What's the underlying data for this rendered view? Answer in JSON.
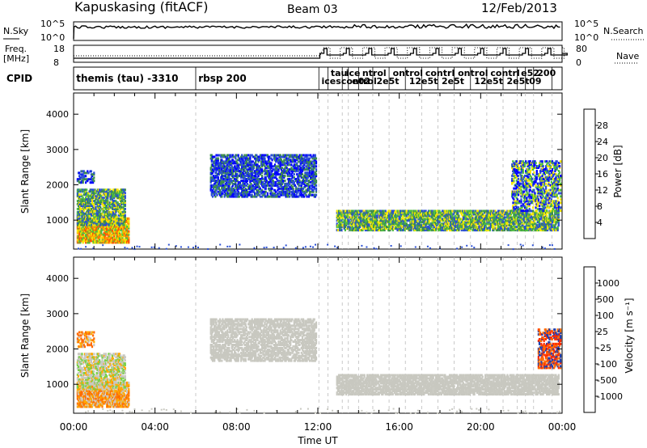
{
  "header": {
    "station": "Kapuskasing (fitACF)",
    "beam": "Beam 03",
    "date": "12/Feb/2013"
  },
  "strips": {
    "nsky_label": "N.Sky",
    "nsky_ticks": [
      "10^5",
      "10^0"
    ],
    "nsearch_label": "N.Search",
    "nsearch_ticks": [
      "10^5",
      "10^0"
    ],
    "freq_label": [
      "Freq.",
      "[MHz]"
    ],
    "freq_ticks": [
      "18",
      "8"
    ],
    "nave_label": "Nave",
    "nave_ticks": [
      "80",
      "0"
    ],
    "cpid_label": "CPID",
    "cpid_names": [
      {
        "text": "themis (tau) -3310",
        "t": 0.05
      },
      {
        "text": "rbsp 200",
        "t": 6.05
      },
      {
        "text": "tau",
        "t": 12.55
      },
      {
        "text": "icescontrol",
        "t": 12.1
      },
      {
        "text": "ice",
        "t": 13.3
      },
      {
        "text": "e02",
        "t": 13.6
      },
      {
        "text": "ntrol",
        "t": 14.1
      },
      {
        "text": "2e5t",
        "t": 14.8
      },
      {
        "text": "ontrol",
        "t": 15.6
      },
      {
        "text": "12e5t",
        "t": 16.4
      },
      {
        "text": "contrl",
        "t": 17.2
      },
      {
        "text": "2e5t",
        "t": 18.0
      },
      {
        "text": "ontrol",
        "t": 18.8
      },
      {
        "text": "12e5t",
        "t": 19.6
      },
      {
        "text": "contrl",
        "t": 20.4
      },
      {
        "text": "2e5t",
        "t": 21.2
      },
      {
        "text": "e52",
        "t": 21.9
      },
      {
        "text": "09",
        "t": 22.3
      },
      {
        "text": "200",
        "t": 22.7
      }
    ]
  },
  "chart_data": [
    {
      "type": "heatmap",
      "name": "power",
      "xlabel": "",
      "ylabel": "Slant Range [km]",
      "xlim": [
        0,
        24
      ],
      "ylim": [
        180,
        4600
      ],
      "yticks": [
        1000,
        2000,
        3000,
        4000
      ],
      "colorbar": {
        "label": "Power [dB]",
        "ticks": [
          "4",
          "8",
          "12",
          "16",
          "20",
          "24",
          "28"
        ],
        "colors": [
          "#0000ff",
          "#2a4fd4",
          "#3c8c4c",
          "#4dbd3e",
          "#f5e600",
          "#ff9900",
          "#ff5500",
          "#ff0000"
        ]
      },
      "scatter_regions": [
        {
          "t0": 0.15,
          "t1": 2.7,
          "r0": 400,
          "r1": 1100,
          "colors": [
            "#ff5500",
            "#ff9900",
            "#f5e600",
            "#4dbd3e"
          ],
          "density": 0.8
        },
        {
          "t0": 0.15,
          "t1": 2.5,
          "r0": 900,
          "r1": 1900,
          "colors": [
            "#4dbd3e",
            "#3c8c4c",
            "#f5e600",
            "#2a4fd4"
          ],
          "density": 0.65
        },
        {
          "t0": 0.15,
          "t1": 1.0,
          "r0": 2100,
          "r1": 2450,
          "colors": [
            "#2a4fd4",
            "#0000ff",
            "#3c8c4c"
          ],
          "density": 0.4
        },
        {
          "t0": 6.7,
          "t1": 11.9,
          "r0": 1700,
          "r1": 2900,
          "colors": [
            "#0000ff",
            "#2a4fd4",
            "#3c8c4c"
          ],
          "density": 0.55
        },
        {
          "t0": 12.9,
          "t1": 23.8,
          "r0": 750,
          "r1": 1300,
          "colors": [
            "#2a4fd4",
            "#3c8c4c",
            "#4dbd3e",
            "#f5e600"
          ],
          "density": 0.7
        },
        {
          "t0": 21.5,
          "t1": 23.9,
          "r0": 1300,
          "r1": 2700,
          "colors": [
            "#0000ff",
            "#2a4fd4",
            "#4dbd3e",
            "#f5e600"
          ],
          "density": 0.45
        }
      ],
      "ground_scatter_band": {
        "r0": 200,
        "r1": 330,
        "color": "#2a4fd4"
      }
    },
    {
      "type": "heatmap",
      "name": "velocity",
      "xlabel": "Time UT",
      "ylabel": "Slant Range [km]",
      "xlim": [
        0,
        24
      ],
      "ylim": [
        180,
        4600
      ],
      "yticks": [
        1000,
        2000,
        3000,
        4000
      ],
      "xticks": [
        "00:00",
        "04:00",
        "08:00",
        "12:00",
        "16:00",
        "20:00",
        "00:00"
      ],
      "xtick_hours": [
        0,
        4,
        8,
        12,
        16,
        20,
        24
      ],
      "colorbar": {
        "label": "Velocity [m s⁻¹]",
        "ticks": [
          "1000",
          "500",
          "100",
          "25",
          "-25",
          "-100",
          "-500",
          "-1000"
        ],
        "colors": [
          "#1f3fb0",
          "#2a6fd4",
          "#3fae3a",
          "#7ad04a",
          "#c8c8c0",
          "#ffaa00",
          "#ff6a00",
          "#ff2a00",
          "#e00000"
        ]
      },
      "scatter_regions": [
        {
          "t0": 0.15,
          "t1": 2.7,
          "r0": 400,
          "r1": 1100,
          "colors": [
            "#ffaa00",
            "#ff8800",
            "#c8c8c0",
            "#ff6a00"
          ],
          "density": 0.7
        },
        {
          "t0": 0.15,
          "t1": 2.5,
          "r0": 900,
          "r1": 1900,
          "colors": [
            "#c8c8c0",
            "#c8c8c0",
            "#7ad04a",
            "#ffaa00"
          ],
          "density": 0.6
        },
        {
          "t0": 0.15,
          "t1": 1.0,
          "r0": 2100,
          "r1": 2550,
          "colors": [
            "#ff6a00",
            "#c8c8c0",
            "#ffaa00"
          ],
          "density": 0.4
        },
        {
          "t0": 6.7,
          "t1": 11.9,
          "r0": 1700,
          "r1": 2900,
          "colors": [
            "#c8c8c0"
          ],
          "density": 0.55
        },
        {
          "t0": 12.9,
          "t1": 23.8,
          "r0": 750,
          "r1": 1300,
          "colors": [
            "#c8c8c0"
          ],
          "density": 0.7
        },
        {
          "t0": 22.8,
          "t1": 23.9,
          "r0": 1500,
          "r1": 2600,
          "colors": [
            "#ff2a00",
            "#ff6a00",
            "#1f3fb0"
          ],
          "density": 0.5
        }
      ],
      "ground_scatter_band": {
        "r0": 200,
        "r1": 330,
        "color": "#c8c8c0"
      }
    }
  ]
}
